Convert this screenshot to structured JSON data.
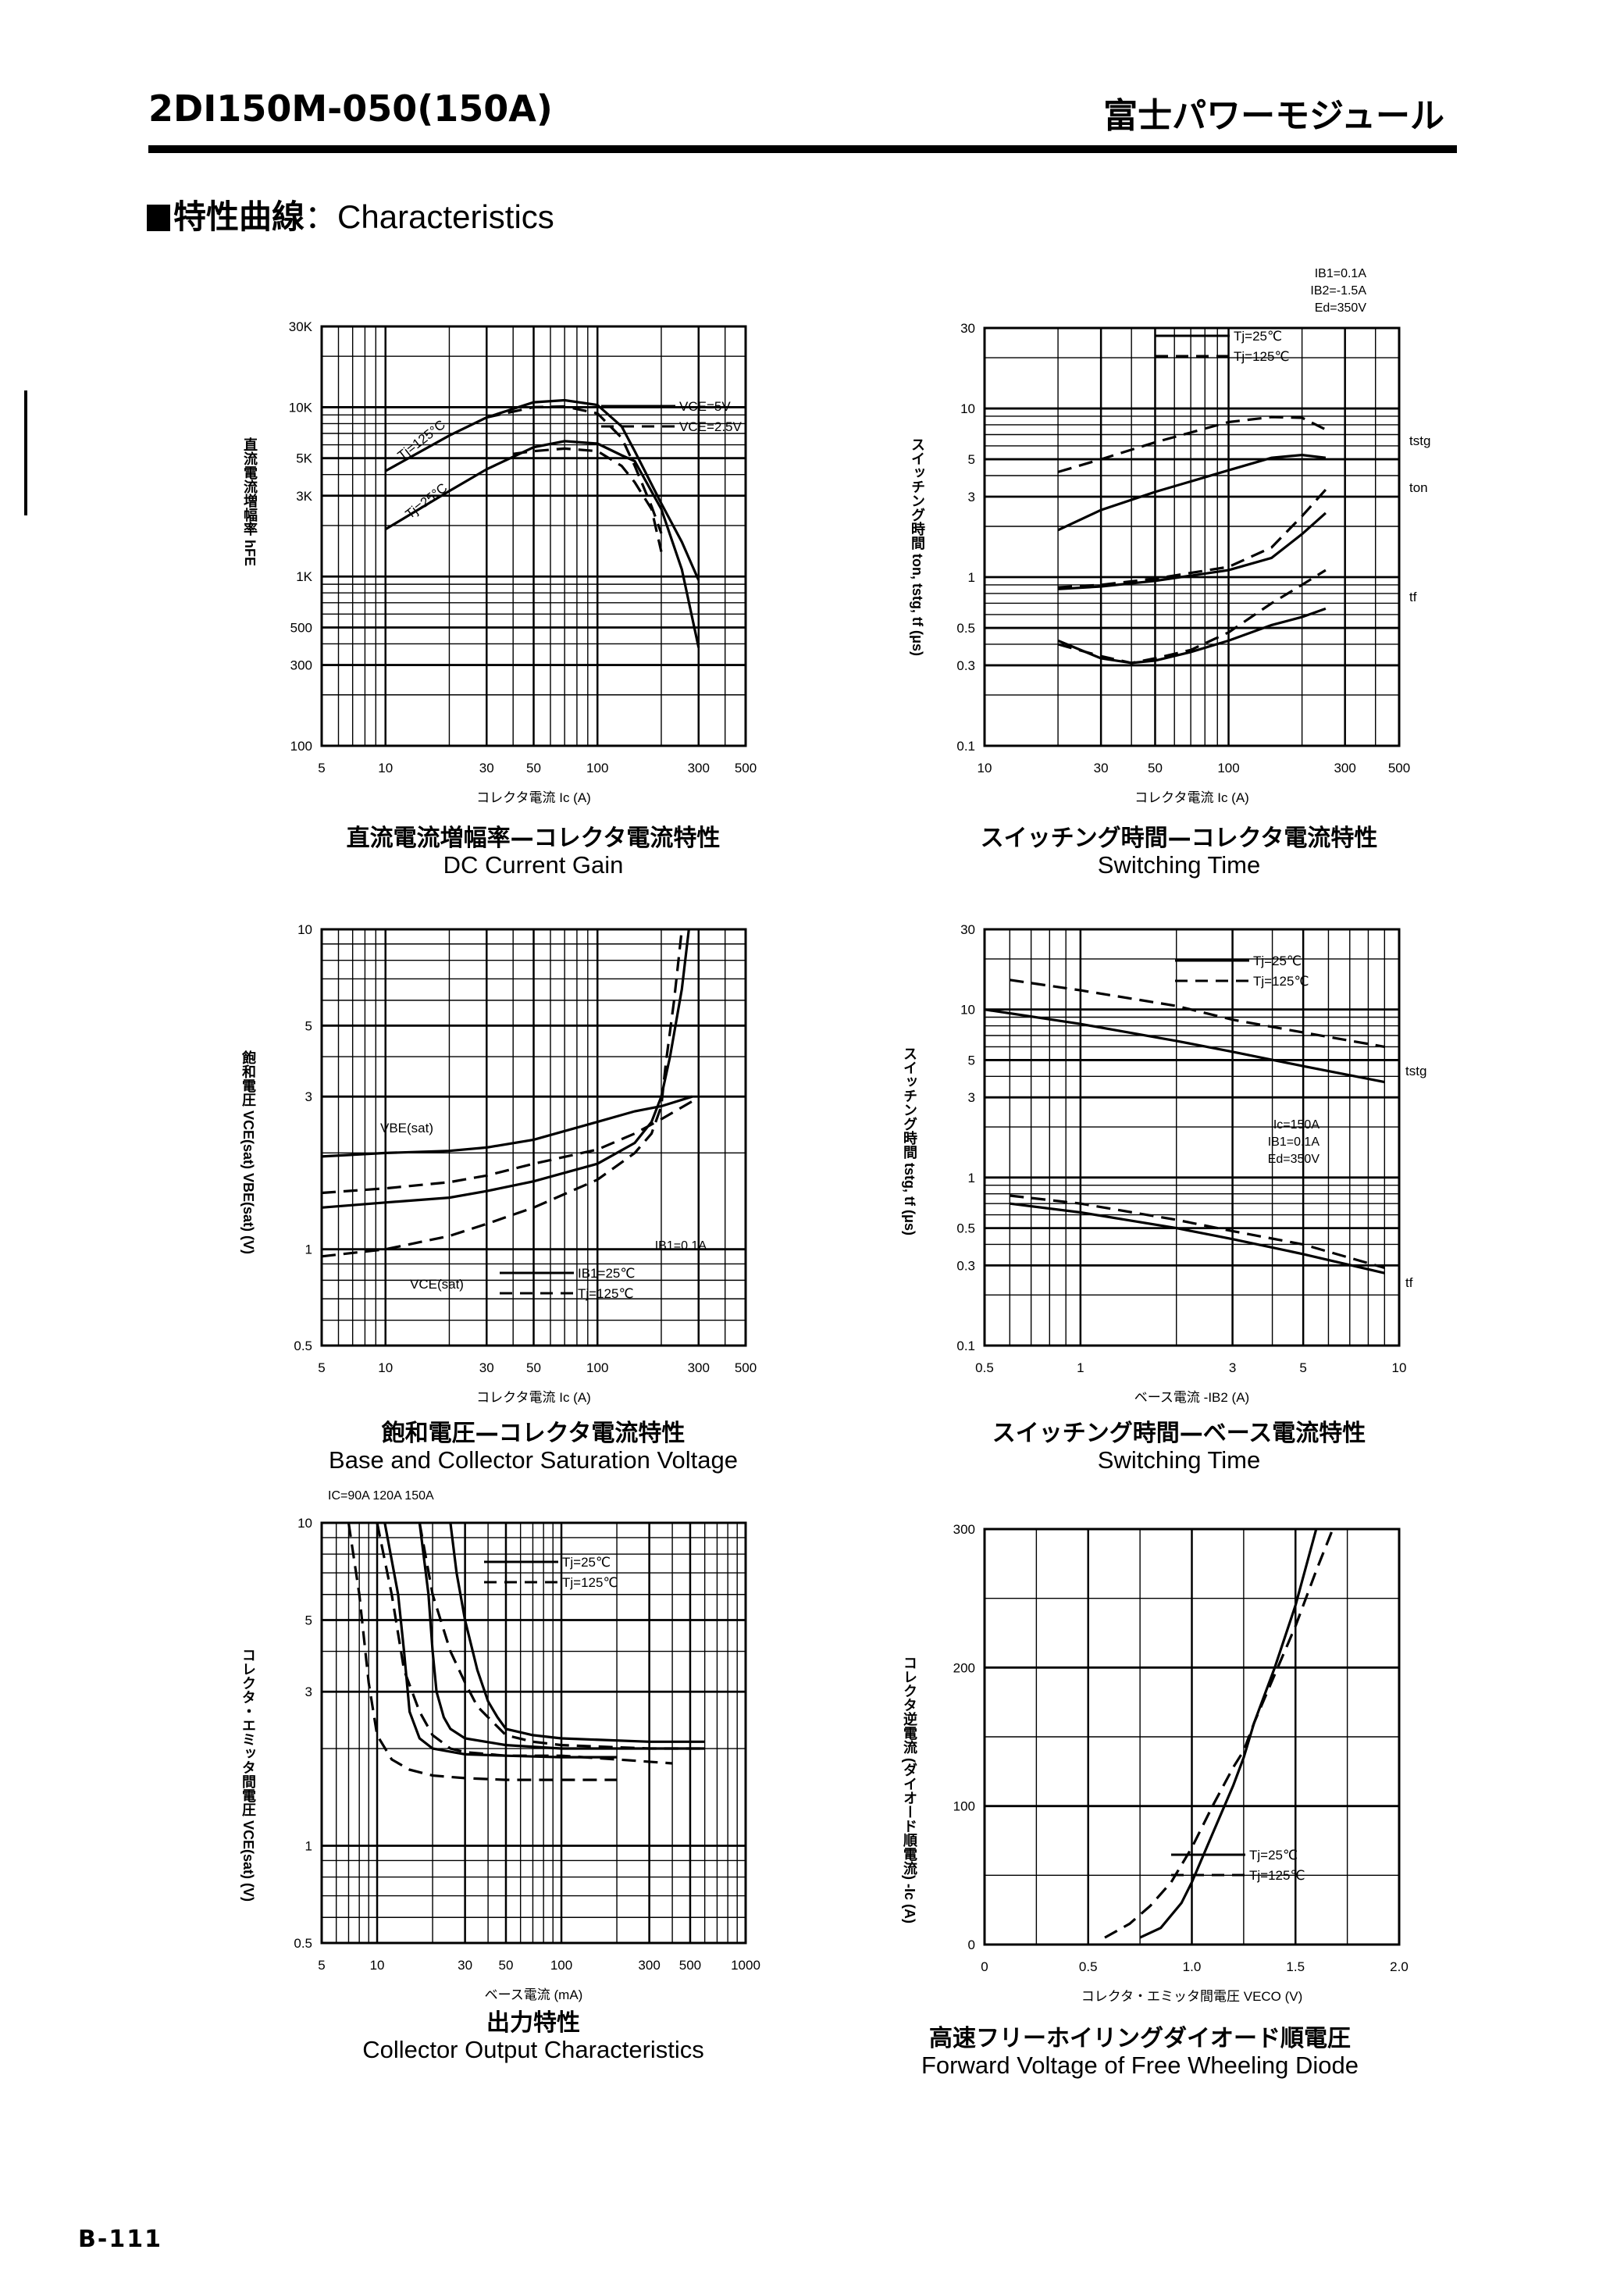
{
  "header": {
    "title": "2DI150M-050(150A)",
    "brand": "富士パワーモジュール"
  },
  "section": {
    "jp": "特性曲線",
    "sep": "：",
    "en": "Characteristics"
  },
  "captions": [
    {
      "jp": "直流電流増幅率—コレクタ電流特性",
      "en": "DC Current Gain"
    },
    {
      "jp": "スイッチング時間—コレクタ電流特性",
      "en": "Switching Time"
    },
    {
      "jp": "飽和電圧—コレクタ電流特性",
      "en": "Base and Collector Saturation Voltage"
    },
    {
      "jp": "スイッチング時間—ベース電流特性",
      "en": "Switching Time"
    },
    {
      "jp": "出力特性",
      "en": "Collector Output Characteristics"
    },
    {
      "jp": "高速フリーホイリングダイオード順電圧",
      "en": "Forward Voltage of Free Wheeling Diode"
    }
  ],
  "footer": {
    "page": "B-111"
  },
  "chart_data": [
    {
      "id": "dc_gain",
      "type": "line",
      "title": "DC Current Gain",
      "title_jp": "直流電流増幅率—コレクタ電流特性",
      "xlabel": "コレクタ電流 Ic (A)",
      "ylabel": "直流電流増幅率 hFE",
      "xscale": "log",
      "yscale": "log",
      "xlim": [
        5,
        500
      ],
      "ylim": [
        100,
        30000
      ],
      "xticks": [
        "5",
        "10",
        "30",
        "50",
        "100",
        "300",
        "500"
      ],
      "yticks": [
        "100",
        "300",
        "500",
        "1K",
        "3K",
        "5K",
        "10K",
        "30K"
      ],
      "legend": [
        {
          "label": "VCE=5V",
          "style": "solid"
        },
        {
          "label": "VCE=2.5V",
          "style": "dashed"
        }
      ],
      "annotations": [
        "Tj=125°C",
        "Tj=25°C"
      ],
      "series": [
        {
          "name": "Tj=125°C, VCE=5V",
          "style": "solid",
          "x": [
            10,
            20,
            30,
            50,
            70,
            100,
            130,
            150,
            200,
            250,
            300
          ],
          "y": [
            4200,
            6800,
            8700,
            10700,
            11000,
            10300,
            7700,
            5500,
            2700,
            1600,
            950
          ]
        },
        {
          "name": "Tj=125°C, VCE=2.5V",
          "style": "dashed",
          "x": [
            30,
            50,
            70,
            100,
            130,
            150,
            180,
            200
          ],
          "y": [
            8700,
            10000,
            10100,
            9200,
            6600,
            4500,
            2600,
            1800
          ]
        },
        {
          "name": "Tj=25°C, VCE=5V",
          "style": "solid",
          "x": [
            10,
            20,
            30,
            50,
            70,
            100,
            130,
            150,
            200,
            250,
            300
          ],
          "y": [
            1900,
            3200,
            4300,
            5800,
            6300,
            6100,
            5200,
            4800,
            2500,
            1100,
            380
          ]
        },
        {
          "name": "Tj=25°C, VCE=2.5V",
          "style": "dashed",
          "x": [
            40,
            50,
            70,
            100,
            130,
            150,
            180,
            200
          ],
          "y": [
            5300,
            5500,
            5700,
            5500,
            4500,
            3600,
            2500,
            1400
          ]
        }
      ]
    },
    {
      "id": "switch_vs_ic",
      "type": "line",
      "title": "Switching Time",
      "title_jp": "スイッチング時間—コレクタ電流特性",
      "xlabel": "コレクタ電流 Ic (A)",
      "ylabel": "スイッチング時間 ton, tstg, tf (μs)",
      "xscale": "log",
      "yscale": "log",
      "xlim": [
        10,
        500
      ],
      "ylim": [
        0.1,
        30
      ],
      "xticks": [
        "10",
        "30",
        "50",
        "100",
        "300",
        "500"
      ],
      "yticks": [
        "0.1",
        "0.3",
        "0.5",
        "1",
        "3",
        "5",
        "10",
        "30"
      ],
      "conditions": [
        "IB1=0.1A",
        "IB2=-1.5A",
        "Ed=350V"
      ],
      "legend": [
        {
          "label": "Tj=25℃",
          "style": "solid"
        },
        {
          "label": "Tj=125℃",
          "style": "dashed"
        }
      ],
      "annotations": [
        "tstg",
        "ton",
        "tf"
      ],
      "series": [
        {
          "name": "tstg Tj=25℃",
          "style": "solid",
          "x": [
            20,
            30,
            50,
            100,
            150,
            200,
            250
          ],
          "y": [
            1.9,
            2.5,
            3.2,
            4.3,
            5.1,
            5.3,
            5.1
          ]
        },
        {
          "name": "tstg Tj=125℃",
          "style": "dashed",
          "x": [
            20,
            30,
            50,
            100,
            150,
            200,
            250
          ],
          "y": [
            4.2,
            5.0,
            6.3,
            8.3,
            8.9,
            8.8,
            7.5
          ]
        },
        {
          "name": "ton Tj=25℃",
          "style": "solid",
          "x": [
            20,
            30,
            50,
            100,
            150,
            200,
            250
          ],
          "y": [
            0.85,
            0.88,
            0.95,
            1.1,
            1.3,
            1.8,
            2.4
          ]
        },
        {
          "name": "ton Tj=125℃",
          "style": "dashed",
          "x": [
            20,
            30,
            50,
            100,
            150,
            200,
            250
          ],
          "y": [
            0.87,
            0.9,
            0.98,
            1.15,
            1.5,
            2.3,
            3.3
          ]
        },
        {
          "name": "tf Tj=25℃",
          "style": "solid",
          "x": [
            20,
            30,
            40,
            50,
            70,
            100,
            150,
            200,
            250
          ],
          "y": [
            0.42,
            0.33,
            0.31,
            0.32,
            0.36,
            0.42,
            0.52,
            0.58,
            0.65
          ]
        },
        {
          "name": "tf Tj=125℃",
          "style": "dashed",
          "x": [
            20,
            30,
            40,
            50,
            70,
            100,
            150,
            200,
            250
          ],
          "y": [
            0.4,
            0.34,
            0.31,
            0.33,
            0.37,
            0.47,
            0.7,
            0.9,
            1.1
          ]
        }
      ]
    },
    {
      "id": "sat_voltage",
      "type": "line",
      "title": "Base and Collector Saturation Voltage",
      "title_jp": "飽和電圧—コレクタ電流特性",
      "xlabel": "コレクタ電流 Ic (A)",
      "ylabel": "飽和電圧 VCE(sat) VBE(sat) (V)",
      "xscale": "log",
      "yscale": "log",
      "xlim": [
        5,
        500
      ],
      "ylim": [
        0.5,
        10
      ],
      "xticks": [
        "5",
        "10",
        "30",
        "50",
        "100",
        "300",
        "500"
      ],
      "yticks": [
        "0.5",
        "1",
        "3",
        "5",
        "10"
      ],
      "conditions": [
        "IB1=0.1A"
      ],
      "legend": [
        {
          "label": "IB1=25℃",
          "style": "solid"
        },
        {
          "label": "Tj=125℃",
          "style": "dashed"
        }
      ],
      "annotations": [
        "VBE(sat)",
        "VCE(sat)"
      ],
      "series": [
        {
          "name": "VBE(sat) 25℃",
          "style": "solid",
          "x": [
            5,
            10,
            20,
            30,
            50,
            100,
            150,
            200,
            280
          ],
          "y": [
            1.95,
            2.0,
            2.03,
            2.08,
            2.2,
            2.5,
            2.7,
            2.8,
            3.0
          ]
        },
        {
          "name": "VBE(sat) 125℃",
          "style": "dashed",
          "x": [
            5,
            10,
            20,
            30,
            50,
            100,
            150,
            200,
            280
          ],
          "y": [
            1.5,
            1.55,
            1.62,
            1.7,
            1.85,
            2.05,
            2.3,
            2.55,
            2.9
          ]
        },
        {
          "name": "VCE(sat) 25℃",
          "style": "solid",
          "x": [
            5,
            10,
            20,
            30,
            50,
            100,
            150,
            180,
            200,
            220,
            250,
            270
          ],
          "y": [
            1.35,
            1.4,
            1.45,
            1.52,
            1.63,
            1.85,
            2.15,
            2.5,
            3.0,
            4.0,
            6.5,
            10
          ]
        },
        {
          "name": "VCE(sat) 125℃",
          "style": "dashed",
          "x": [
            5,
            10,
            20,
            30,
            50,
            100,
            150,
            180,
            200,
            210,
            230,
            250
          ],
          "y": [
            0.95,
            1.0,
            1.1,
            1.2,
            1.35,
            1.65,
            2.0,
            2.3,
            2.8,
            3.8,
            6.0,
            10
          ]
        }
      ]
    },
    {
      "id": "switch_vs_ib2",
      "type": "line",
      "title": "Switching Time",
      "title_jp": "スイッチング時間—ベース電流特性",
      "xlabel": "ベース電流 -IB2 (A)",
      "ylabel": "スイッチング時間 tstg, tf (μs)",
      "xscale": "log",
      "yscale": "log",
      "xlim": [
        0.5,
        10
      ],
      "ylim": [
        0.1,
        30
      ],
      "xticks": [
        "0.5",
        "1",
        "3",
        "5",
        "10"
      ],
      "yticks": [
        "0.1",
        "0.3",
        "0.5",
        "1",
        "3",
        "5",
        "10",
        "30"
      ],
      "conditions": [
        "Ic=150A",
        "IB1=0.1A",
        "Ed=350V"
      ],
      "legend": [
        {
          "label": "Tj=25℃",
          "style": "solid"
        },
        {
          "label": "Tj=125℃",
          "style": "dashed"
        }
      ],
      "annotations": [
        "tstg",
        "tf"
      ],
      "series": [
        {
          "name": "tstg Tj=25℃",
          "style": "solid",
          "x": [
            0.5,
            1,
            2,
            3,
            5,
            9
          ],
          "y": [
            10,
            8.2,
            6.5,
            5.6,
            4.6,
            3.7
          ]
        },
        {
          "name": "tstg Tj=125℃",
          "style": "dashed",
          "x": [
            0.6,
            1,
            2,
            3,
            5,
            9
          ],
          "y": [
            15,
            13,
            10.5,
            8.7,
            7.3,
            6.0
          ]
        },
        {
          "name": "tf Tj=25℃",
          "style": "solid",
          "x": [
            0.6,
            1,
            2,
            3,
            5,
            9
          ],
          "y": [
            0.7,
            0.62,
            0.5,
            0.43,
            0.35,
            0.27
          ]
        },
        {
          "name": "tf Tj=125℃",
          "style": "dashed",
          "x": [
            0.6,
            1,
            2,
            3,
            5,
            9
          ],
          "y": [
            0.78,
            0.7,
            0.56,
            0.48,
            0.4,
            0.29
          ]
        }
      ]
    },
    {
      "id": "output_char",
      "type": "line",
      "title": "Collector Output Characteristics",
      "title_jp": "出力特性",
      "xlabel": "ベース電流 (mA)",
      "ylabel": "コレクタ・エミッタ間電圧 VCE(sat) (V)",
      "xscale": "log",
      "yscale": "log",
      "xlim": [
        5,
        1000
      ],
      "ylim": [
        0.5,
        10
      ],
      "xticks": [
        "5",
        "10",
        "30",
        "50",
        "100",
        "300",
        "500",
        "1000"
      ],
      "yticks": [
        "0.5",
        "1",
        "3",
        "5",
        "10"
      ],
      "conditions": [
        "IC=90A 120A 150A"
      ],
      "legend": [
        {
          "label": "Tj=25℃",
          "style": "solid"
        },
        {
          "label": "Tj=125℃",
          "style": "dashed"
        }
      ],
      "series": [
        {
          "name": "90A Tj=125℃",
          "style": "dashed",
          "x": [
            7,
            8,
            9,
            10,
            12,
            15,
            20,
            30,
            50,
            100,
            200
          ],
          "y": [
            10,
            6,
            3.2,
            2.2,
            1.85,
            1.72,
            1.65,
            1.62,
            1.6,
            1.6,
            1.6
          ]
        },
        {
          "name": "90A Tj=25℃",
          "style": "solid",
          "x": [
            11,
            13,
            14,
            15,
            17,
            20,
            30,
            50,
            100,
            200
          ],
          "y": [
            10,
            6,
            4,
            2.6,
            2.15,
            2.0,
            1.92,
            1.9,
            1.88,
            1.88
          ]
        },
        {
          "name": "120A Tj=125℃",
          "style": "dashed",
          "x": [
            10,
            12,
            14,
            17,
            20,
            25,
            30,
            50,
            100,
            200,
            400
          ],
          "y": [
            10,
            6,
            3.5,
            2.6,
            2.2,
            2.0,
            1.95,
            1.9,
            1.9,
            1.85,
            1.8
          ]
        },
        {
          "name": "120A Tj=25℃",
          "style": "solid",
          "x": [
            17,
            19,
            20,
            21,
            23,
            25,
            30,
            50,
            100,
            300,
            600
          ],
          "y": [
            10,
            6,
            4,
            3,
            2.5,
            2.3,
            2.15,
            2.05,
            2.0,
            2.0,
            2.0
          ]
        },
        {
          "name": "150A Tj=125℃",
          "style": "dashed",
          "x": [
            17,
            20,
            25,
            30,
            35,
            40,
            50,
            70,
            100,
            300,
            600
          ],
          "y": [
            10,
            6,
            4,
            3.2,
            2.7,
            2.5,
            2.2,
            2.1,
            2.05,
            2.0,
            2.0
          ]
        },
        {
          "name": "150A Tj=25℃",
          "style": "solid",
          "x": [
            25,
            27,
            30,
            35,
            40,
            45,
            50,
            70,
            100,
            300,
            600
          ],
          "y": [
            10,
            7,
            5,
            3.5,
            2.8,
            2.5,
            2.3,
            2.2,
            2.15,
            2.1,
            2.1
          ]
        }
      ]
    },
    {
      "id": "fwd_diode",
      "type": "line",
      "title": "Forward Voltage of Free Wheeling Diode",
      "title_jp": "高速フリーホイリングダイオード順電圧",
      "xlabel": "コレクタ・エミッタ間電圧 VECO (V)",
      "ylabel": "コレクタ逆電流 (ダイオード順電流) -Ic (A)",
      "xscale": "linear",
      "yscale": "linear",
      "xlim": [
        0,
        2.0
      ],
      "ylim": [
        0,
        300
      ],
      "xticks": [
        "0",
        "0.5",
        "1.0",
        "1.5",
        "2.0"
      ],
      "yticks": [
        "0",
        "100",
        "200",
        "300"
      ],
      "legend": [
        {
          "label": "Tj=25℃",
          "style": "solid"
        },
        {
          "label": "Tj=125℃",
          "style": "dashed"
        }
      ],
      "series": [
        {
          "name": "Tj=25℃",
          "style": "solid",
          "x": [
            0.75,
            0.85,
            0.95,
            1.0,
            1.1,
            1.2,
            1.25,
            1.3,
            1.4,
            1.5,
            1.6
          ],
          "y": [
            5,
            12,
            30,
            45,
            80,
            115,
            135,
            160,
            200,
            245,
            300
          ]
        },
        {
          "name": "Tj=125℃",
          "style": "dashed",
          "x": [
            0.58,
            0.7,
            0.8,
            0.9,
            1.0,
            1.1,
            1.2,
            1.25,
            1.3,
            1.4,
            1.5,
            1.6,
            1.68
          ],
          "y": [
            5,
            15,
            28,
            45,
            70,
            100,
            128,
            140,
            160,
            195,
            230,
            270,
            300
          ]
        }
      ]
    }
  ]
}
